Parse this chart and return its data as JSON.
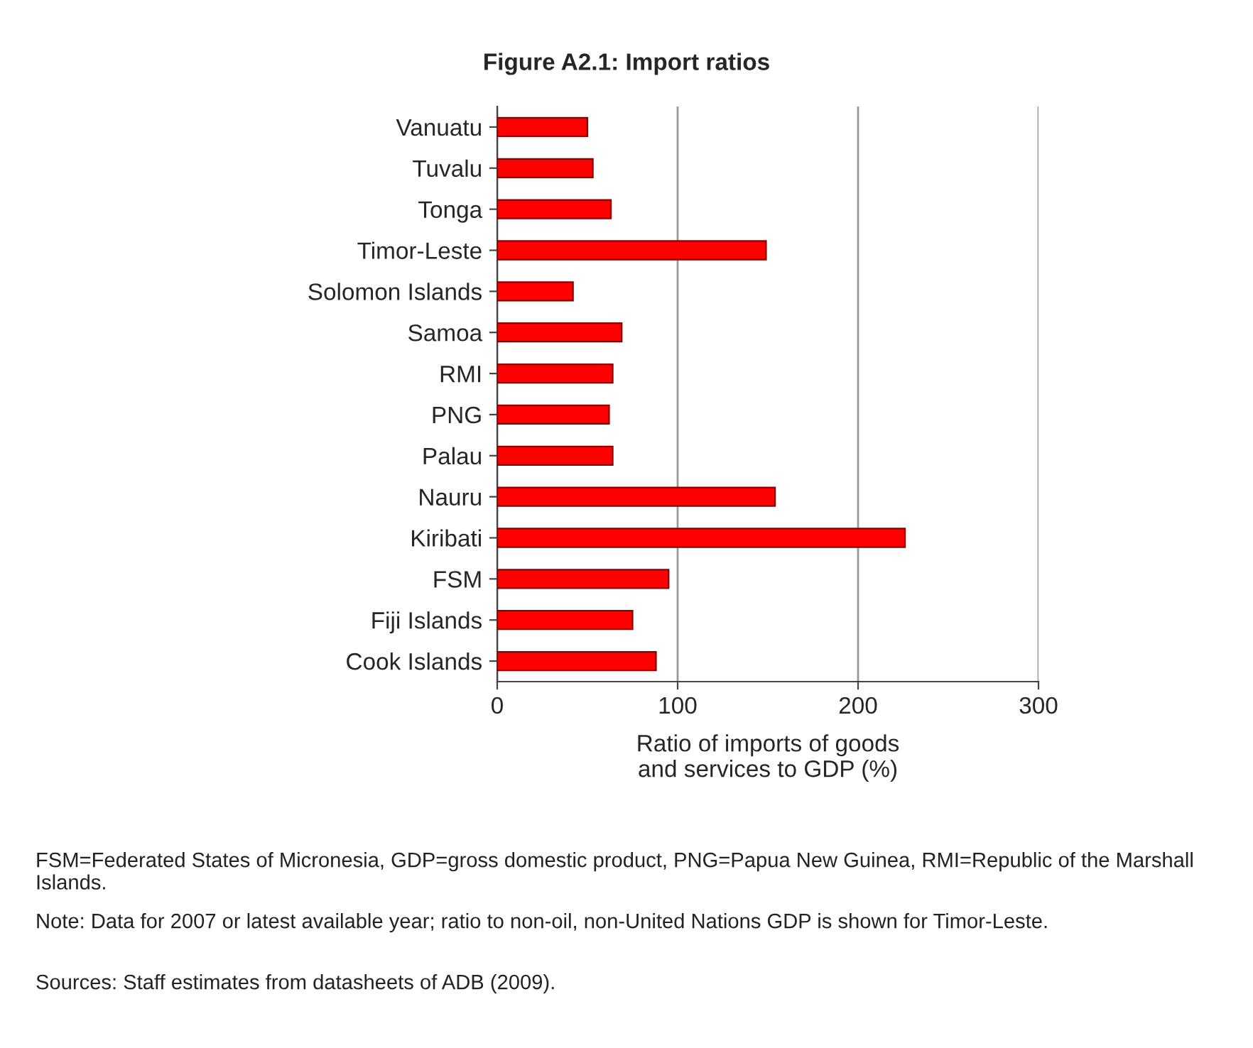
{
  "chart_data": {
    "type": "bar",
    "orientation": "horizontal",
    "title": "Figure A2.1: Import ratios",
    "xlabel": "Ratio of imports of goods\nand services to GDP (%)",
    "categories": [
      "Vanuatu",
      "Tuvalu",
      "Tonga",
      "Timor-Leste",
      "Solomon Islands",
      "Samoa",
      "RMI",
      "PNG",
      "Palau",
      "Nauru",
      "Kiribati",
      "FSM",
      "Fiji Islands",
      "Cook Islands"
    ],
    "values": [
      50,
      53,
      63,
      149,
      42,
      69,
      64,
      62,
      64,
      154,
      226,
      95,
      75,
      88
    ],
    "color": "#ff0000",
    "xlim": [
      0,
      300
    ],
    "xticks": [
      0,
      100,
      200,
      300
    ],
    "grid": "x",
    "annotations": [
      "FSM=Federated States of Micronesia, GDP=gross domestic product, PNG=Papua New Guinea, RMI=Republic of the Marshall Islands.",
      "Note: Data for 2007 or latest available year; ratio to non-oil, non-United Nations GDP is shown for Timor-Leste.",
      "Sources: Staff estimates from datasheets of ADB (2009)."
    ]
  }
}
